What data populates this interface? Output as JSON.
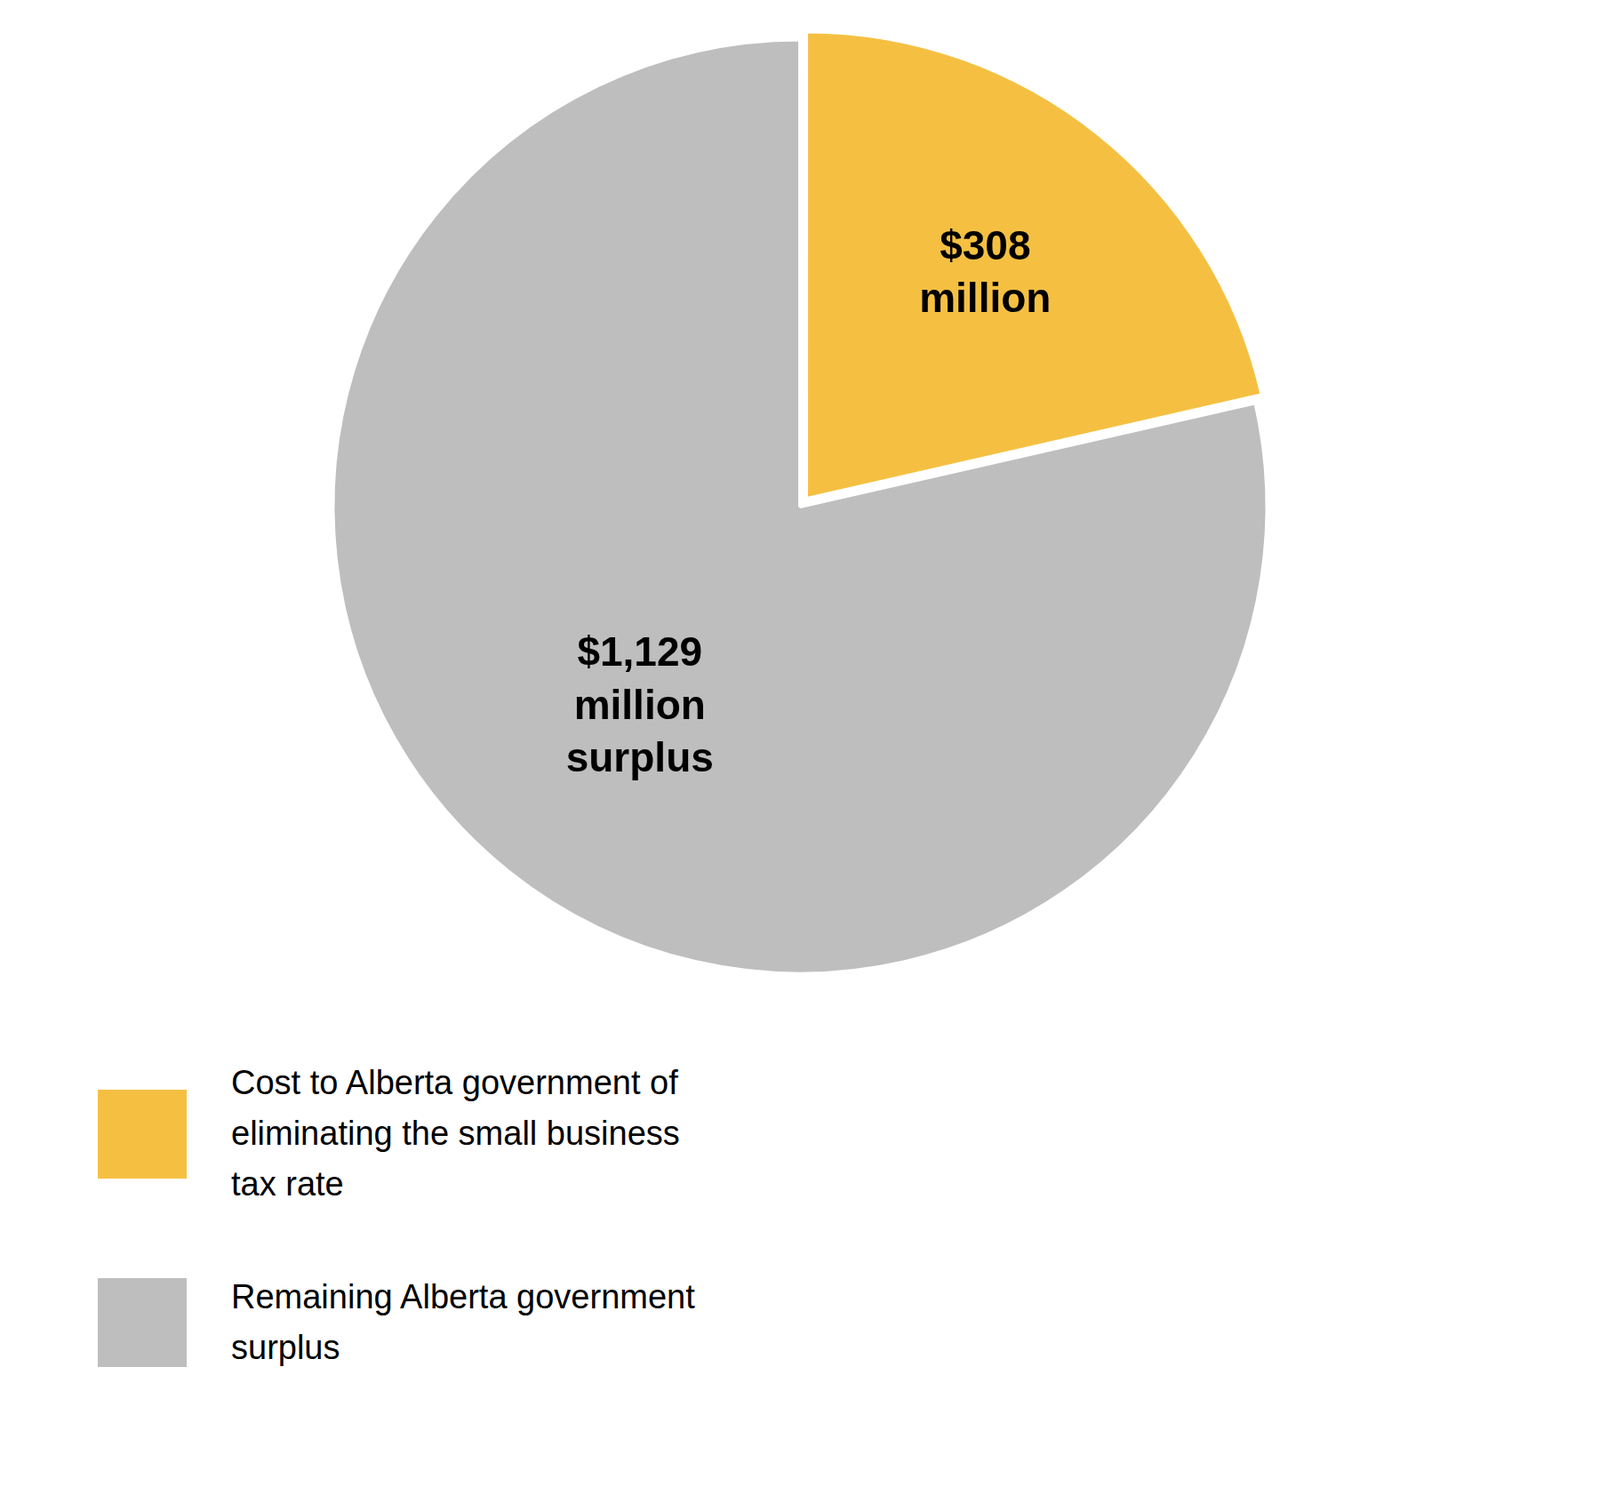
{
  "chart_data": {
    "type": "pie",
    "categories": [
      "Cost to Alberta government of\neliminating the small business\ntax rate",
      "Remaining Alberta government\nsurplus"
    ],
    "values": [
      308,
      1129
    ],
    "value_labels": [
      "$308\nmillion",
      "$1,129\nmillion\nsurplus"
    ],
    "colors": [
      "#F5C042",
      "#BEBEBE"
    ],
    "data_labels": true,
    "legend": "bottom"
  }
}
